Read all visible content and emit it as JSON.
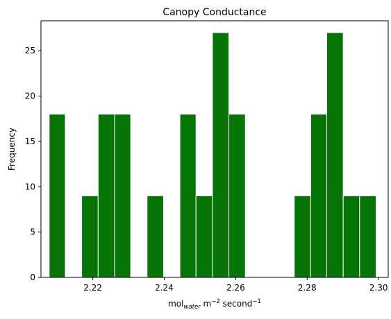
{
  "chart_data": {
    "type": "bar",
    "title": "Canopy Conductance",
    "xlabel": {
      "base": "mol",
      "sub": "water",
      "mid": " m",
      "sup1": "−2",
      "tail": " second",
      "sup2": "−1"
    },
    "ylabel": "Frequency",
    "bar_color": "#067306",
    "bar_edge_color": "#ffffff",
    "xlim": [
      2.2055,
      2.3027
    ],
    "ylim": [
      0,
      28.3
    ],
    "x_ticks": [
      2.22,
      2.24,
      2.26,
      2.28,
      2.3
    ],
    "x_tick_labels": [
      "2.22",
      "2.24",
      "2.26",
      "2.28",
      "2.30"
    ],
    "y_ticks": [
      0,
      5,
      10,
      15,
      20,
      25
    ],
    "y_tick_labels": [
      "0",
      "5",
      "10",
      "15",
      "20",
      "25"
    ],
    "bin_edges": [
      2.2078,
      2.2123,
      2.2169,
      2.2215,
      2.2261,
      2.2306,
      2.2352,
      2.2398,
      2.2444,
      2.2489,
      2.2535,
      2.2581,
      2.2627,
      2.2672,
      2.2718,
      2.2764,
      2.281,
      2.2855,
      2.2901,
      2.2947,
      2.2993
    ],
    "values": [
      18,
      0,
      9,
      18,
      18,
      0,
      9,
      0,
      18,
      9,
      27,
      18,
      0,
      0,
      0,
      9,
      18,
      27,
      9,
      9
    ]
  }
}
